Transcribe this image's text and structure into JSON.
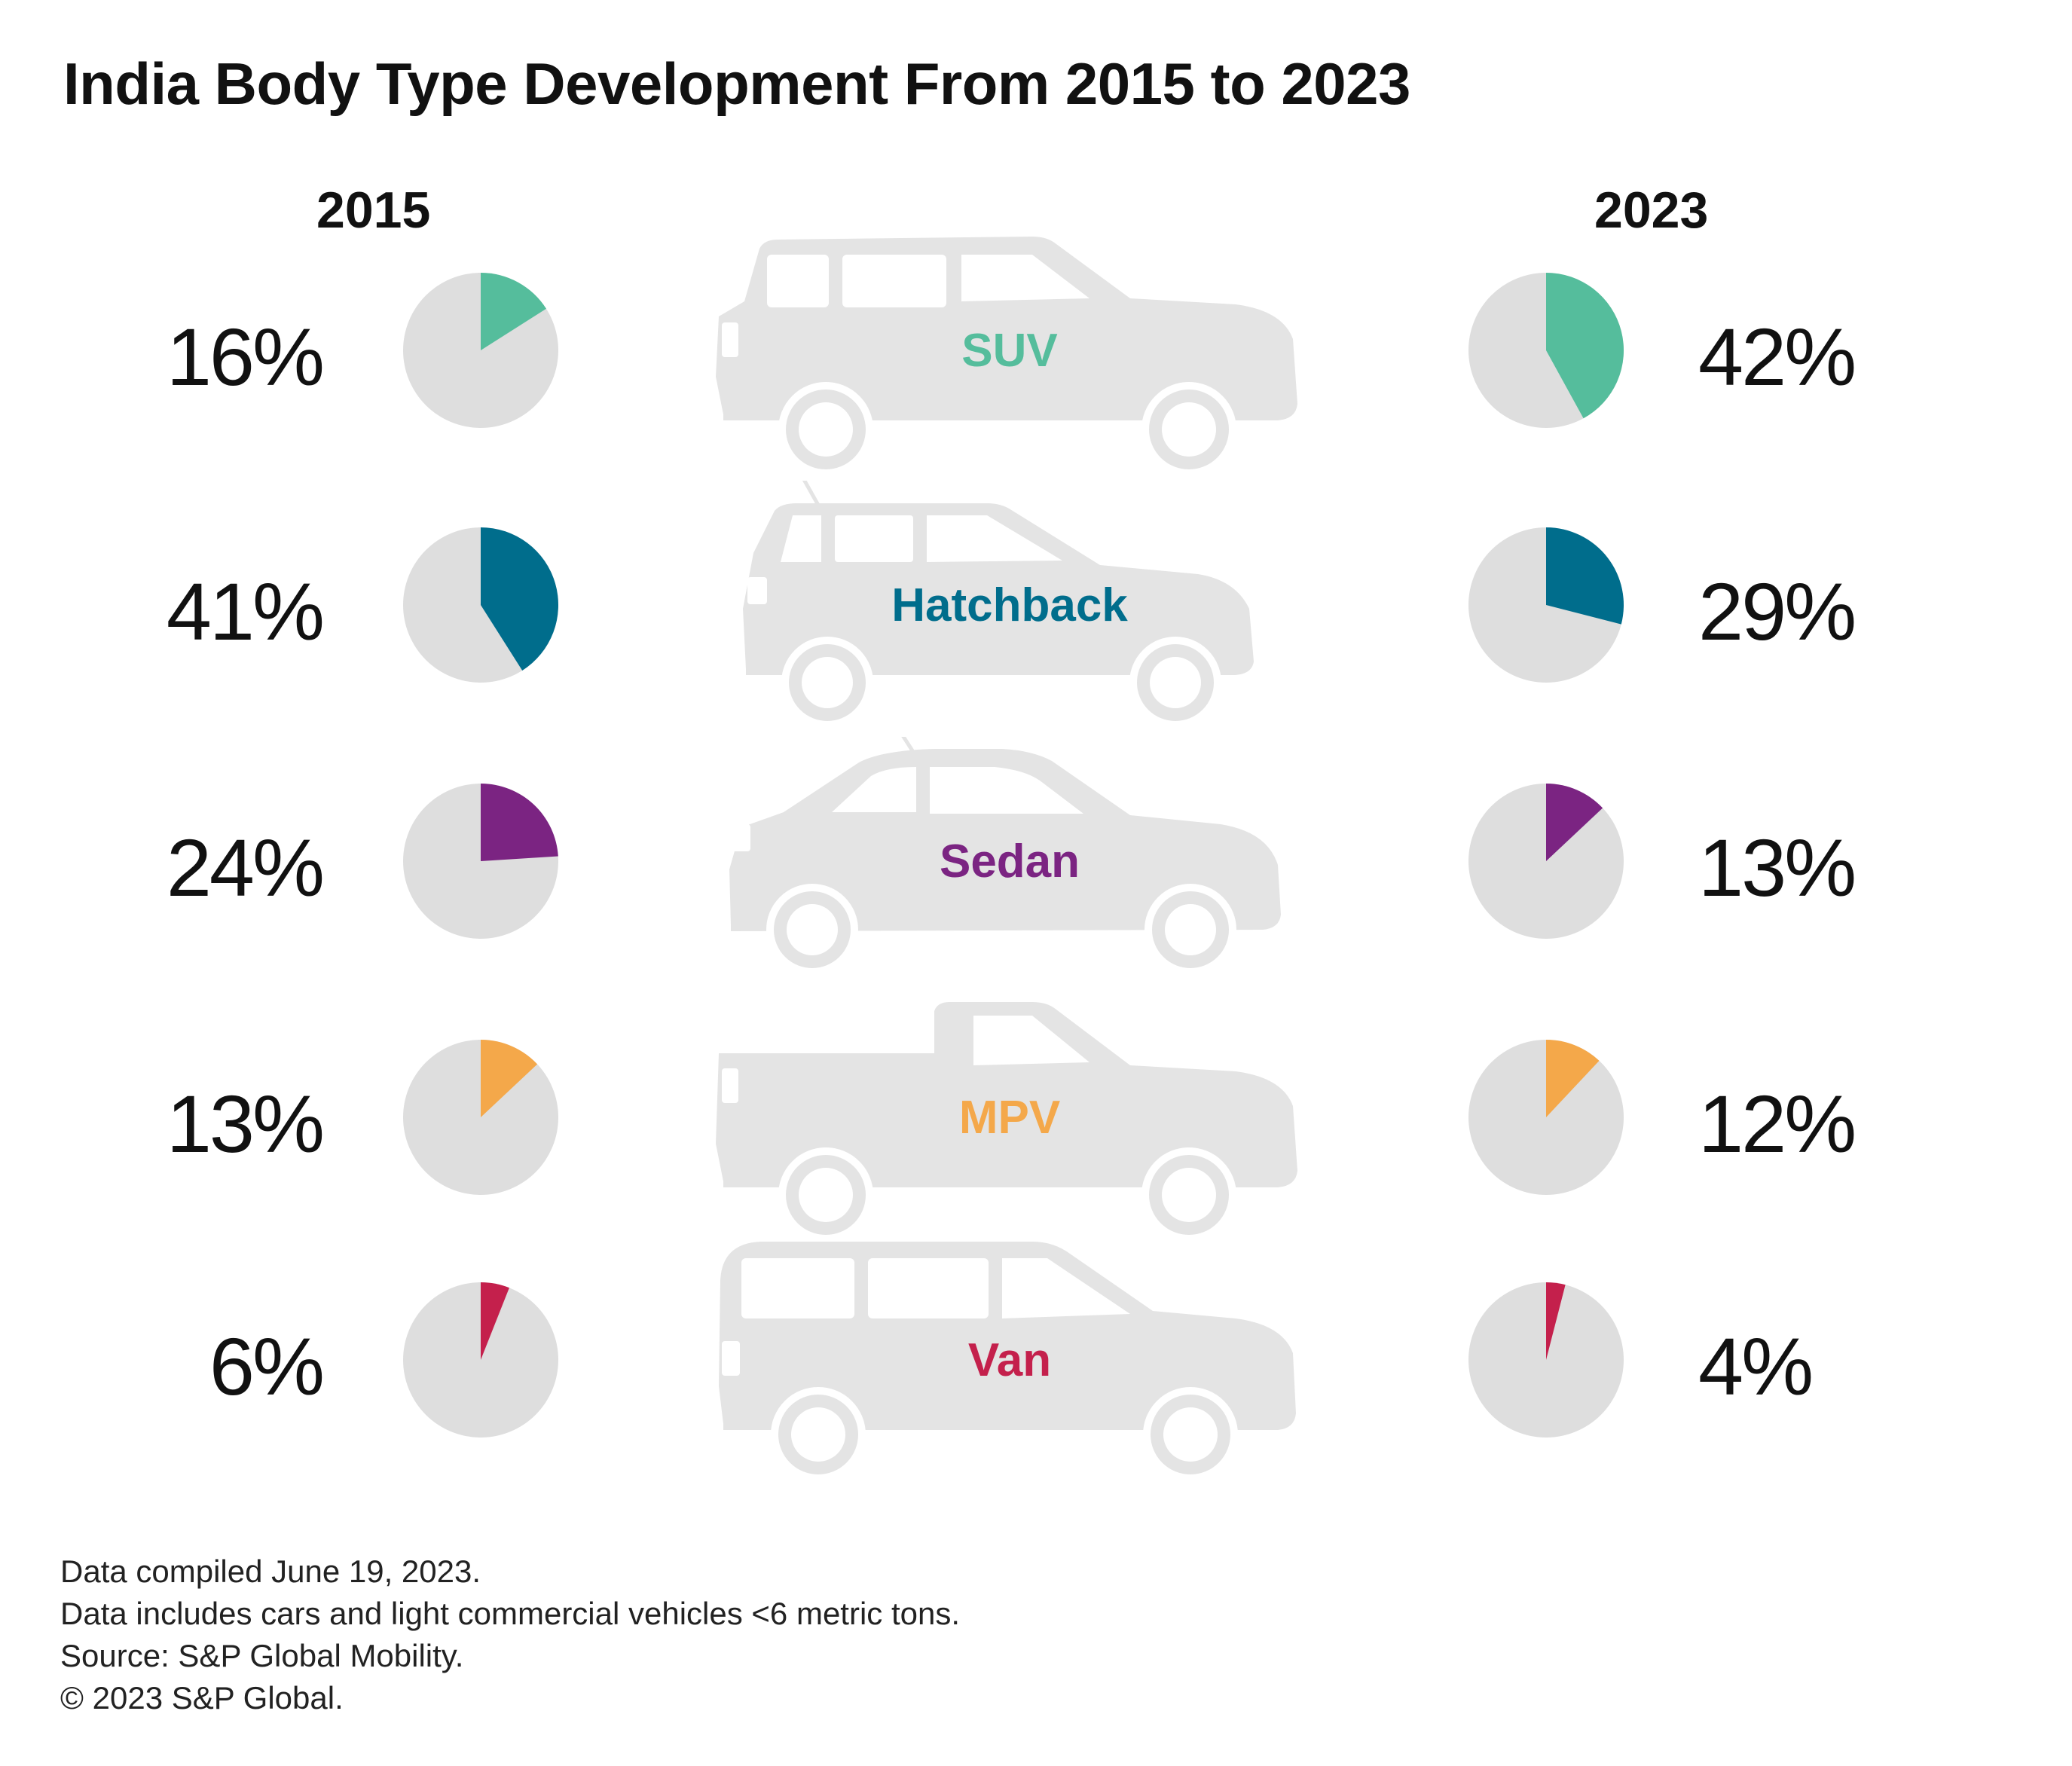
{
  "title": "India Body Type Development From 2015 to 2023",
  "years": {
    "left": "2015",
    "right": "2023"
  },
  "colors": {
    "pie_background": "#dedede",
    "car_silhouette": "#e4e4e4",
    "SUV": "#55bd9c",
    "Hatchback": "#006d8c",
    "Sedan": "#7b2482",
    "MPV": "#f4a84a",
    "Van": "#c4204c"
  },
  "chart_data": {
    "type": "pie",
    "title": "India Body Type Development From 2015 to 2023",
    "categories": [
      "SUV",
      "Hatchback",
      "Sedan",
      "MPV",
      "Van"
    ],
    "series": [
      {
        "name": "2015",
        "values": [
          16,
          41,
          24,
          13,
          6
        ]
      },
      {
        "name": "2023",
        "values": [
          42,
          29,
          13,
          12,
          4
        ]
      }
    ],
    "unit": "%"
  },
  "rows": [
    {
      "label": "SUV",
      "color": "#55bd9c",
      "icon": "suv-icon",
      "v2015": 16,
      "v2023": 42,
      "text2015": "16%",
      "text2023": "42%"
    },
    {
      "label": "Hatchback",
      "color": "#006d8c",
      "icon": "hatchback-icon",
      "v2015": 41,
      "v2023": 29,
      "text2015": "41%",
      "text2023": "29%"
    },
    {
      "label": "Sedan",
      "color": "#7b2482",
      "icon": "sedan-icon",
      "v2015": 24,
      "v2023": 13,
      "text2015": "24%",
      "text2023": "13%"
    },
    {
      "label": "MPV",
      "color": "#f4a84a",
      "icon": "pickup-icon",
      "v2015": 13,
      "v2023": 12,
      "text2015": "13%",
      "text2023": "12%"
    },
    {
      "label": "Van",
      "color": "#c4204c",
      "icon": "van-icon",
      "v2015": 6,
      "v2023": 4,
      "text2015": "6%",
      "text2023": "4%"
    }
  ],
  "notes": [
    "Data compiled June 19, 2023.",
    "Data includes cars and light commercial vehicles <6 metric tons.",
    "Source: S&P Global Mobility.",
    "© 2023 S&P Global."
  ]
}
